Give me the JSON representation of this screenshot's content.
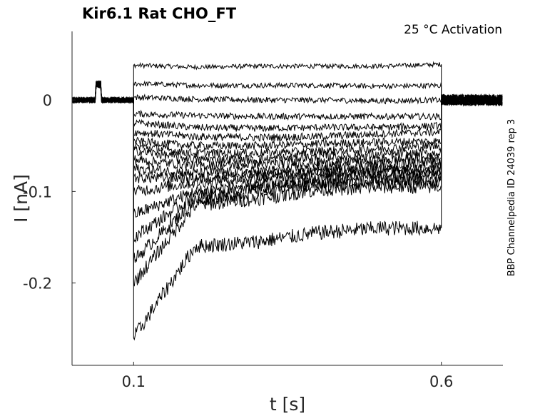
{
  "chart_data": {
    "type": "line",
    "title": "Kir6.1  Rat  CHO_FT",
    "subtitle": "25 °C  Activation",
    "xlabel": "t [s]",
    "ylabel": "I [nA]",
    "side_note": "BBP Channelpedia ID 24039 rep 3",
    "xlim": [
      0.0,
      0.7
    ],
    "ylim": [
      -0.29,
      0.075
    ],
    "xticks": [
      0.1,
      0.6
    ],
    "xtick_labels": [
      "0.1",
      "0.6"
    ],
    "yticks": [
      0,
      -0.1,
      -0.2
    ],
    "ytick_labels": [
      "0",
      "-0.1",
      "-0.2"
    ],
    "pulse": {
      "start": 0.1,
      "end": 0.6
    },
    "baseline_artifact": {
      "start": 0.038,
      "end": 0.047,
      "value": 0.017
    },
    "grid": false,
    "series_color": "#000000",
    "series": [
      {
        "values": [
          0.038,
          0.036,
          0.037,
          0.037,
          0.037,
          0.039
        ]
      },
      {
        "values": [
          0.018,
          0.016,
          0.016,
          0.016,
          0.015,
          0.016
        ]
      },
      {
        "values": [
          0.003,
          0.001,
          0.0,
          0.0,
          -0.001,
          0.0
        ]
      },
      {
        "values": [
          -0.015,
          -0.017,
          -0.018,
          -0.018,
          -0.018,
          -0.018
        ]
      },
      {
        "values": [
          -0.025,
          -0.03,
          -0.031,
          -0.03,
          -0.03,
          -0.028
        ]
      },
      {
        "values": [
          -0.035,
          -0.04,
          -0.041,
          -0.04,
          -0.037,
          -0.035
        ]
      },
      {
        "values": [
          -0.045,
          -0.05,
          -0.05,
          -0.048,
          -0.046,
          -0.045
        ]
      },
      {
        "values": [
          -0.05,
          -0.058,
          -0.058,
          -0.056,
          -0.053,
          -0.05
        ]
      },
      {
        "values": [
          -0.055,
          -0.065,
          -0.065,
          -0.062,
          -0.06,
          -0.058
        ]
      },
      {
        "values": [
          -0.065,
          -0.072,
          -0.07,
          -0.068,
          -0.066,
          -0.063
        ]
      },
      {
        "values": [
          -0.075,
          -0.08,
          -0.078,
          -0.074,
          -0.07,
          -0.068
        ]
      },
      {
        "values": [
          -0.085,
          -0.085,
          -0.082,
          -0.078,
          -0.075,
          -0.073
        ]
      },
      {
        "values": [
          -0.1,
          -0.09,
          -0.085,
          -0.08,
          -0.078,
          -0.076
        ]
      },
      {
        "values": [
          -0.125,
          -0.1,
          -0.092,
          -0.085,
          -0.082,
          -0.08
        ]
      },
      {
        "values": [
          -0.15,
          -0.105,
          -0.097,
          -0.09,
          -0.086,
          -0.085
        ]
      },
      {
        "values": [
          -0.175,
          -0.11,
          -0.1,
          -0.093,
          -0.09,
          -0.088
        ]
      },
      {
        "values": [
          -0.2,
          -0.115,
          -0.108,
          -0.098,
          -0.095,
          -0.095
        ]
      },
      {
        "values": [
          -0.26,
          -0.16,
          -0.155,
          -0.145,
          -0.14,
          -0.14
        ]
      }
    ]
  }
}
